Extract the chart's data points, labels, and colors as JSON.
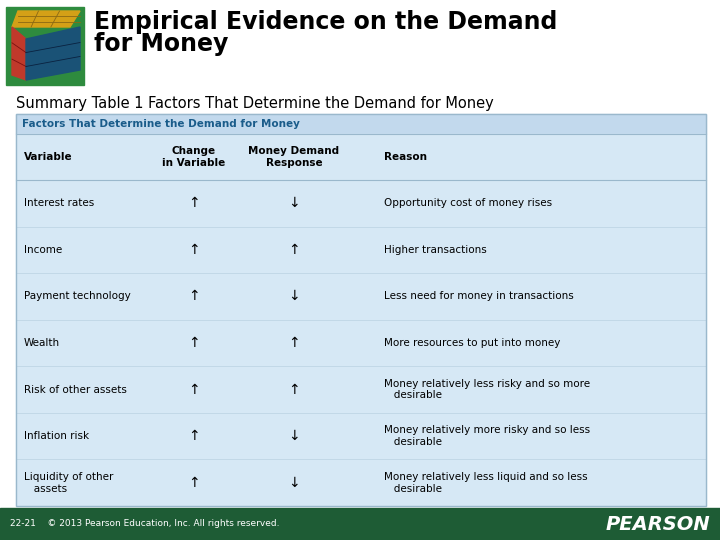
{
  "title_line1": "Empirical Evidence on the Demand",
  "title_line2": "for Money",
  "subtitle": "Summary Table 1 Factors That Determine the Demand for Money",
  "table_header": "Factors That Determine the Demand for Money",
  "col_headers": [
    "Variable",
    "Change\nin Variable",
    "Money Demand\nResponse",
    "Reason"
  ],
  "rows": [
    [
      "Interest rates",
      "↑",
      "↓",
      "Opportunity cost of money rises"
    ],
    [
      "Income",
      "↑",
      "↑",
      "Higher transactions"
    ],
    [
      "Payment technology",
      "↑",
      "↓",
      "Less need for money in transactions"
    ],
    [
      "Wealth",
      "↑",
      "↑",
      "More resources to put into money"
    ],
    [
      "Risk of other assets",
      "↑",
      "↑",
      "Money relatively less risky and so more\n   desirable"
    ],
    [
      "Inflation risk",
      "↑",
      "↓",
      "Money relatively more risky and so less\n   desirable"
    ],
    [
      "Liquidity of other\n   assets",
      "↑",
      "↓",
      "Money relatively less liquid and so less\n   desirable"
    ]
  ],
  "bg_color": "#ffffff",
  "table_bg": "#d6e8f5",
  "table_header_banner_bg": "#c2d9ed",
  "table_border_color": "#9ab8cc",
  "header_text_color": "#1a5c8a",
  "title_color": "#000000",
  "subtitle_color": "#000000",
  "footer_bg": "#1e5c35",
  "footer_text": "22-21    © 2013 Pearson Education, Inc. All rights reserved.",
  "footer_text_color": "#ffffff",
  "pearson_color": "#ffffff",
  "cube_bg": "#2e8b3e"
}
